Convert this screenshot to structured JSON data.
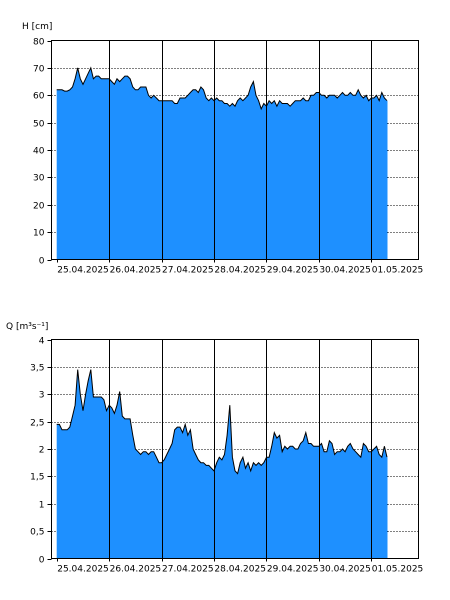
{
  "chart_data": [
    {
      "type": "area",
      "ylabel": "H [cm]",
      "xlabel": "",
      "ylim": [
        0,
        80
      ],
      "y_ticks": [
        0,
        10,
        20,
        30,
        40,
        50,
        60,
        70,
        80
      ],
      "y_tick_labels": [
        "0",
        "10",
        "20",
        "30",
        "40",
        "50",
        "60",
        "70",
        "80"
      ],
      "xlim": [
        -0.1,
        6.9
      ],
      "x_tick_labels": [
        "25.04.2025",
        "26.04.2025",
        "27.04.2025",
        "28.04.2025",
        "29.04.2025",
        "30.04.2025",
        "01.05.2025"
      ],
      "x_unit": "days since 25.04.2025 00:00",
      "grid": {
        "horizontal": "dotted",
        "vertical": "solid at day boundaries"
      },
      "fill_color": "#1e90ff",
      "line_color": "#000000",
      "series": [
        {
          "x": [
            0.0,
            0.05,
            0.1,
            0.15,
            0.2,
            0.25,
            0.3,
            0.35,
            0.4,
            0.45,
            0.5,
            0.55,
            0.6,
            0.65,
            0.7,
            0.75,
            0.8,
            0.85,
            0.9,
            0.95,
            1.0,
            1.05,
            1.1,
            1.15,
            1.2,
            1.25,
            1.3,
            1.35,
            1.4,
            1.45,
            1.5,
            1.55,
            1.6,
            1.65,
            1.7,
            1.75,
            1.8,
            1.85,
            1.9,
            1.95,
            2.0,
            2.05,
            2.1,
            2.15,
            2.2,
            2.25,
            2.3,
            2.35,
            2.4,
            2.45,
            2.5,
            2.55,
            2.6,
            2.65,
            2.7,
            2.75,
            2.8,
            2.85,
            2.9,
            2.95,
            3.0,
            3.05,
            3.1,
            3.15,
            3.2,
            3.25,
            3.3,
            3.35,
            3.4,
            3.45,
            3.5,
            3.55,
            3.6,
            3.65,
            3.7,
            3.75,
            3.8,
            3.85,
            3.9,
            3.95,
            4.0,
            4.05,
            4.1,
            4.15,
            4.2,
            4.25,
            4.3,
            4.35,
            4.4,
            4.45,
            4.5,
            4.55,
            4.6,
            4.65,
            4.7,
            4.75,
            4.8,
            4.85,
            4.9,
            4.95,
            5.0,
            5.05,
            5.1,
            5.15,
            5.2,
            5.25,
            5.3,
            5.35,
            5.4,
            5.45,
            5.5,
            5.55,
            5.6,
            5.65,
            5.7,
            5.75,
            5.8,
            5.85,
            5.9,
            5.95,
            6.0,
            6.05,
            6.1,
            6.15,
            6.2,
            6.25,
            6.3
          ],
          "values": [
            62,
            62,
            62,
            61.5,
            61.5,
            62,
            63,
            66,
            70,
            66,
            64,
            66,
            68,
            70,
            66,
            67,
            67,
            66,
            66,
            66,
            66,
            65,
            64,
            66,
            65,
            66,
            67,
            67,
            66,
            63,
            62,
            62,
            63,
            63,
            63,
            60,
            59,
            60,
            59,
            58,
            58,
            58,
            58,
            58,
            58,
            57,
            57,
            59,
            59,
            59,
            60,
            61,
            62,
            62,
            61,
            63,
            62,
            59,
            58,
            59,
            58,
            59,
            58,
            58,
            57,
            57,
            56,
            57,
            56,
            58,
            59,
            58,
            59,
            60,
            63,
            65,
            60,
            58,
            55,
            57,
            56,
            58,
            57,
            58,
            56,
            58,
            57,
            57,
            57,
            56,
            57,
            58,
            58,
            58,
            59,
            58,
            58,
            60,
            60,
            61,
            61,
            60,
            60,
            59,
            60,
            60,
            60,
            59,
            60,
            61,
            60,
            60,
            61,
            60,
            60,
            62,
            60,
            59,
            60,
            58,
            59,
            59,
            60,
            58,
            61,
            59,
            58
          ]
        }
      ]
    },
    {
      "type": "area",
      "ylabel": "Q [m³s⁻¹]",
      "xlabel": "",
      "ylim": [
        0,
        4
      ],
      "y_ticks": [
        0,
        0.5,
        1,
        1.5,
        2,
        2.5,
        3,
        3.5,
        4
      ],
      "y_tick_labels": [
        "0",
        "0,5",
        "1",
        "1,5",
        "2",
        "2,5",
        "3",
        "3,5",
        "4"
      ],
      "xlim": [
        -0.1,
        6.9
      ],
      "x_tick_labels": [
        "25.04.2025",
        "26.04.2025",
        "27.04.2025",
        "28.04.2025",
        "29.04.2025",
        "30.04.2025",
        "01.05.2025"
      ],
      "x_unit": "days since 25.04.2025 00:00",
      "grid": {
        "horizontal": "dotted",
        "vertical": "solid at day boundaries"
      },
      "fill_color": "#1e90ff",
      "line_color": "#000000",
      "series": [
        {
          "x": [
            0.0,
            0.05,
            0.1,
            0.15,
            0.2,
            0.25,
            0.3,
            0.35,
            0.4,
            0.45,
            0.5,
            0.55,
            0.6,
            0.65,
            0.7,
            0.75,
            0.8,
            0.85,
            0.9,
            0.95,
            1.0,
            1.05,
            1.1,
            1.15,
            1.2,
            1.25,
            1.3,
            1.35,
            1.4,
            1.45,
            1.5,
            1.55,
            1.6,
            1.65,
            1.7,
            1.75,
            1.8,
            1.85,
            1.9,
            1.95,
            2.0,
            2.05,
            2.1,
            2.15,
            2.2,
            2.25,
            2.3,
            2.35,
            2.4,
            2.45,
            2.5,
            2.55,
            2.6,
            2.65,
            2.7,
            2.75,
            2.8,
            2.85,
            2.9,
            2.95,
            3.0,
            3.05,
            3.1,
            3.15,
            3.2,
            3.25,
            3.3,
            3.35,
            3.4,
            3.45,
            3.5,
            3.55,
            3.6,
            3.65,
            3.7,
            3.75,
            3.8,
            3.85,
            3.9,
            3.95,
            4.0,
            4.05,
            4.1,
            4.15,
            4.2,
            4.25,
            4.3,
            4.35,
            4.4,
            4.45,
            4.5,
            4.55,
            4.6,
            4.65,
            4.7,
            4.75,
            4.8,
            4.85,
            4.9,
            4.95,
            5.0,
            5.05,
            5.1,
            5.15,
            5.2,
            5.25,
            5.3,
            5.35,
            5.4,
            5.45,
            5.5,
            5.55,
            5.6,
            5.65,
            5.7,
            5.75,
            5.8,
            5.85,
            5.9,
            5.95,
            6.0,
            6.05,
            6.1,
            6.15,
            6.2,
            6.25,
            6.3
          ],
          "values": [
            2.45,
            2.45,
            2.35,
            2.35,
            2.35,
            2.4,
            2.6,
            2.8,
            3.45,
            3.0,
            2.7,
            3.0,
            3.25,
            3.45,
            2.95,
            2.95,
            2.95,
            2.95,
            2.9,
            2.7,
            2.8,
            2.75,
            2.65,
            2.8,
            3.05,
            2.6,
            2.55,
            2.55,
            2.55,
            2.25,
            2.0,
            1.95,
            1.9,
            1.95,
            1.95,
            1.9,
            1.95,
            1.95,
            1.85,
            1.75,
            1.75,
            1.8,
            1.9,
            2.0,
            2.1,
            2.35,
            2.4,
            2.4,
            2.3,
            2.45,
            2.25,
            2.35,
            2.0,
            1.9,
            1.8,
            1.75,
            1.75,
            1.7,
            1.7,
            1.65,
            1.6,
            1.75,
            1.85,
            1.8,
            1.9,
            2.25,
            2.8,
            1.85,
            1.6,
            1.55,
            1.75,
            1.85,
            1.65,
            1.75,
            1.6,
            1.75,
            1.7,
            1.75,
            1.7,
            1.75,
            1.85,
            1.85,
            2.05,
            2.3,
            2.2,
            2.25,
            1.95,
            2.05,
            2.0,
            2.05,
            2.05,
            2.0,
            2.0,
            2.1,
            2.15,
            2.3,
            2.1,
            2.1,
            2.05,
            2.05,
            2.05,
            2.1,
            1.95,
            1.95,
            2.15,
            2.1,
            1.9,
            1.95,
            1.95,
            2.0,
            1.95,
            2.05,
            2.1,
            2.0,
            1.95,
            1.9,
            1.85,
            2.1,
            2.05,
            1.95,
            1.95,
            2.0,
            2.05,
            1.9,
            1.85,
            2.05,
            1.85
          ]
        }
      ]
    }
  ]
}
